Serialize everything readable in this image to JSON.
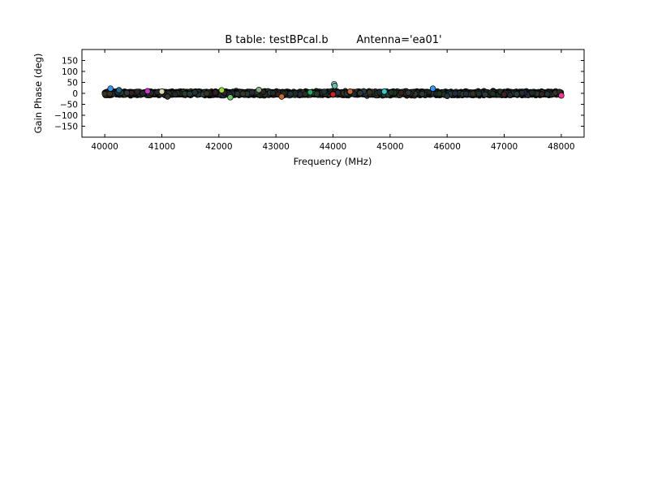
{
  "chart_data": {
    "type": "scatter",
    "title": "B table: testBPcal.b",
    "subtitle": "Antenna='ea01'",
    "xlabel": "Frequency (MHz)",
    "ylabel": "Gain Phase (deg)",
    "xlim": [
      39600,
      48400
    ],
    "ylim": [
      -200,
      200
    ],
    "xticks": [
      40000,
      41000,
      42000,
      43000,
      44000,
      45000,
      46000,
      47000,
      48000
    ],
    "yticks": [
      -150,
      -100,
      -50,
      0,
      50,
      100,
      150
    ],
    "grid": false,
    "legend": "none",
    "series": [
      {
        "color": "#2b3a3a",
        "x_range": [
          40000,
          48000
        ],
        "y_range": [
          -12,
          12
        ],
        "point_count": 3000
      }
    ],
    "highlighted_points": [
      {
        "x": 40100,
        "y": 22,
        "color": "#3399ff"
      },
      {
        "x": 40250,
        "y": 15,
        "color": "#226688"
      },
      {
        "x": 40750,
        "y": 10,
        "color": "#cc33cc"
      },
      {
        "x": 41000,
        "y": 8,
        "color": "#ddddaa"
      },
      {
        "x": 41100,
        "y": -15,
        "color": "#333333"
      },
      {
        "x": 42050,
        "y": 14,
        "color": "#99dd33"
      },
      {
        "x": 42200,
        "y": -18,
        "color": "#66cc66"
      },
      {
        "x": 42700,
        "y": 16,
        "color": "#88aa88"
      },
      {
        "x": 43100,
        "y": -15,
        "color": "#cc6633"
      },
      {
        "x": 43600,
        "y": 5,
        "color": "#22aa66"
      },
      {
        "x": 44020,
        "y": 42,
        "color": "#99ddbb"
      },
      {
        "x": 44030,
        "y": 34,
        "color": "#66bbaa"
      },
      {
        "x": 44000,
        "y": -5,
        "color": "#cc2222"
      },
      {
        "x": 44300,
        "y": 8,
        "color": "#cc6633"
      },
      {
        "x": 44900,
        "y": 8,
        "color": "#33cccc"
      },
      {
        "x": 45750,
        "y": 22,
        "color": "#3399ff"
      },
      {
        "x": 46000,
        "y": -12,
        "color": "#223344"
      },
      {
        "x": 47000,
        "y": -5,
        "color": "#442222"
      },
      {
        "x": 48000,
        "y": -10,
        "color": "#ff3399"
      }
    ]
  }
}
